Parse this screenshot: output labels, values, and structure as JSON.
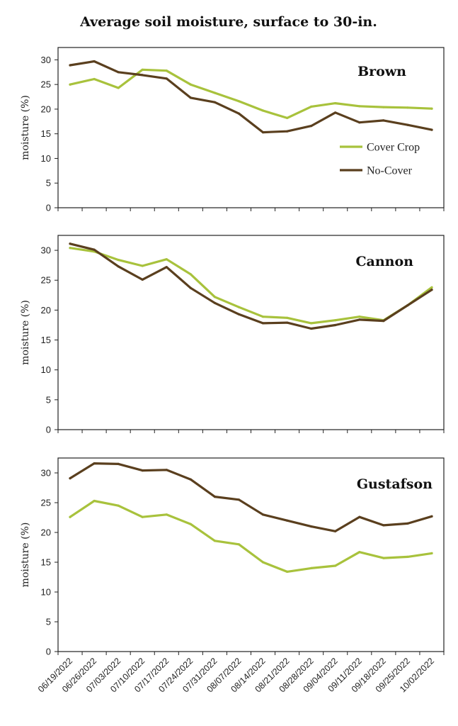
{
  "title": "Average soil moisture, surface to 30-in.",
  "legend": {
    "cover": "Cover Crop",
    "nocover": "No-Cover"
  },
  "colors": {
    "cover": "#a8c23c",
    "nocover": "#5a3f1e",
    "axis": "#222222"
  },
  "chart_data": [
    {
      "type": "line",
      "label": "Brown",
      "ylabel": "moisture (%)",
      "ylim": [
        0,
        30
      ],
      "yticks": [
        0,
        5,
        10,
        15,
        20,
        25,
        30
      ],
      "grid": false,
      "legend_position": "right",
      "series": [
        {
          "name": "Cover Crop",
          "values": [
            25.0,
            26.1,
            24.3,
            28.0,
            27.8,
            25.0,
            23.3,
            21.6,
            19.7,
            18.2,
            20.5,
            21.2,
            20.6,
            20.4,
            20.3,
            20.1
          ]
        },
        {
          "name": "No-Cover",
          "values": [
            28.9,
            29.7,
            27.5,
            26.9,
            26.2,
            22.3,
            21.4,
            19.1,
            15.3,
            15.5,
            16.6,
            19.3,
            17.3,
            17.7,
            16.8,
            15.8
          ]
        }
      ]
    },
    {
      "type": "line",
      "label": "Cannon",
      "ylabel": "moisture (%)",
      "ylim": [
        0,
        30
      ],
      "yticks": [
        0,
        5,
        10,
        15,
        20,
        25,
        30
      ],
      "grid": false,
      "series": [
        {
          "name": "Cover Crop",
          "values": [
            30.4,
            29.8,
            28.4,
            27.4,
            28.5,
            26.0,
            22.2,
            20.5,
            18.9,
            18.7,
            17.8,
            18.3,
            18.9,
            18.3,
            20.8,
            23.8
          ]
        },
        {
          "name": "No-Cover",
          "values": [
            31.1,
            30.1,
            27.3,
            25.1,
            27.2,
            23.7,
            21.2,
            19.3,
            17.8,
            17.9,
            16.9,
            17.5,
            18.4,
            18.2,
            20.8,
            23.4
          ]
        }
      ]
    },
    {
      "type": "line",
      "label": "Gustafson",
      "ylabel": "moisture (%)",
      "ylim": [
        0,
        30
      ],
      "yticks": [
        0,
        5,
        10,
        15,
        20,
        25,
        30
      ],
      "grid": false,
      "series": [
        {
          "name": "Cover Crop",
          "values": [
            22.6,
            25.3,
            24.5,
            22.6,
            23.0,
            21.4,
            18.6,
            18.0,
            15.0,
            13.4,
            14.0,
            14.4,
            16.7,
            15.7,
            15.9,
            16.5
          ]
        },
        {
          "name": "No-Cover",
          "values": [
            29.1,
            31.6,
            31.5,
            30.4,
            30.5,
            28.9,
            26.0,
            25.5,
            23.0,
            22.0,
            21.0,
            20.2,
            22.6,
            21.2,
            21.5,
            22.7
          ]
        }
      ]
    }
  ],
  "x_dates": [
    "06/19/2022",
    "06/26/2022",
    "07/03/2022",
    "07/10/2022",
    "07/17/2022",
    "07/24/2022",
    "07/31/2022",
    "08/07/2022",
    "08/14/2022",
    "08/21/2022",
    "08/28/2022",
    "09/04/2022",
    "09/11/2022",
    "09/18/2022",
    "09/25/2022",
    "10/02/2022"
  ]
}
